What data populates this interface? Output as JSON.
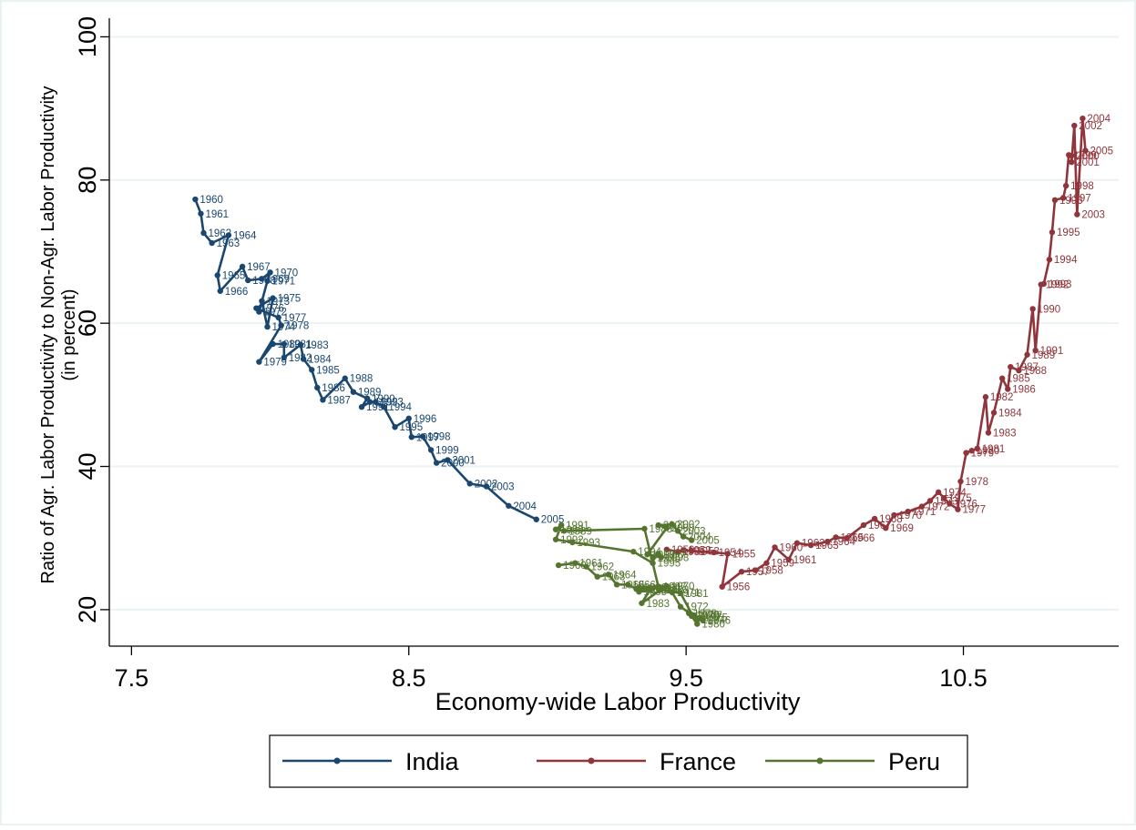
{
  "chart_data": {
    "type": "line",
    "title": "",
    "xlabel": "Economy-wide Labor Productivity",
    "ylabel": [
      "Ratio of Agr. Labor Productivity to Non-Agr. Labor Productivity",
      "(in percent)"
    ],
    "xlim": [
      7.42,
      11.06
    ],
    "ylim": [
      14.9,
      102.6
    ],
    "xticks": [
      7.5,
      8.5,
      9.5,
      10.5
    ],
    "xtick_labels": [
      "7.5",
      "8.5",
      "9.5",
      "10.5"
    ],
    "yticks": [
      20,
      40,
      60,
      80,
      100
    ],
    "ytick_labels": [
      "20",
      "40",
      "60",
      "80",
      "100"
    ],
    "grid": "horizontal",
    "legend_position": "bottom",
    "series": [
      {
        "name": "India",
        "color": "#1a476f",
        "points": [
          {
            "x": 7.73,
            "y": 77.3,
            "label": "1960"
          },
          {
            "x": 7.75,
            "y": 75.3,
            "label": "1961"
          },
          {
            "x": 7.76,
            "y": 72.6,
            "label": "1962"
          },
          {
            "x": 7.79,
            "y": 71.2,
            "label": "1963"
          },
          {
            "x": 7.85,
            "y": 72.3,
            "label": "1964"
          },
          {
            "x": 7.81,
            "y": 66.7,
            "label": "1965"
          },
          {
            "x": 7.82,
            "y": 64.5,
            "label": "1966"
          },
          {
            "x": 7.9,
            "y": 67.9,
            "label": "1967"
          },
          {
            "x": 7.92,
            "y": 66.0,
            "label": "1968"
          },
          {
            "x": 7.97,
            "y": 66.2,
            "label": "1969"
          },
          {
            "x": 8.0,
            "y": 67.1,
            "label": "1970"
          },
          {
            "x": 7.99,
            "y": 65.9,
            "label": "1971"
          },
          {
            "x": 7.96,
            "y": 61.6,
            "label": "1972"
          },
          {
            "x": 7.97,
            "y": 63.1,
            "label": "1973"
          },
          {
            "x": 7.99,
            "y": 59.5,
            "label": "1974"
          },
          {
            "x": 8.01,
            "y": 63.5,
            "label": "1975"
          },
          {
            "x": 7.95,
            "y": 62.1,
            "label": "1976"
          },
          {
            "x": 8.03,
            "y": 60.8,
            "label": "1977"
          },
          {
            "x": 8.04,
            "y": 59.7,
            "label": "1978"
          },
          {
            "x": 7.96,
            "y": 54.6,
            "label": "1979"
          },
          {
            "x": 8.01,
            "y": 57.1,
            "label": "1980"
          },
          {
            "x": 8.05,
            "y": 57.1,
            "label": "1981"
          },
          {
            "x": 8.05,
            "y": 55.2,
            "label": "1982"
          },
          {
            "x": 8.11,
            "y": 57.0,
            "label": "1983"
          },
          {
            "x": 8.12,
            "y": 55.0,
            "label": "1984"
          },
          {
            "x": 8.15,
            "y": 53.5,
            "label": "1985"
          },
          {
            "x": 8.17,
            "y": 51.0,
            "label": "1986"
          },
          {
            "x": 8.19,
            "y": 49.3,
            "label": "1987"
          },
          {
            "x": 8.27,
            "y": 52.3,
            "label": "1988"
          },
          {
            "x": 8.3,
            "y": 50.4,
            "label": "1989"
          },
          {
            "x": 8.35,
            "y": 49.5,
            "label": "1990"
          },
          {
            "x": 8.33,
            "y": 48.3,
            "label": "1991"
          },
          {
            "x": 8.36,
            "y": 49.0,
            "label": "1992"
          },
          {
            "x": 8.38,
            "y": 49.0,
            "label": "1993"
          },
          {
            "x": 8.41,
            "y": 48.3,
            "label": "1994"
          },
          {
            "x": 8.45,
            "y": 45.5,
            "label": "1995"
          },
          {
            "x": 8.5,
            "y": 46.7,
            "label": "1996"
          },
          {
            "x": 8.51,
            "y": 44.1,
            "label": "1997"
          },
          {
            "x": 8.55,
            "y": 44.2,
            "label": "1998"
          },
          {
            "x": 8.58,
            "y": 42.3,
            "label": "1999"
          },
          {
            "x": 8.6,
            "y": 40.5,
            "label": "2000"
          },
          {
            "x": 8.64,
            "y": 40.9,
            "label": "2001"
          },
          {
            "x": 8.72,
            "y": 37.6,
            "label": "2002"
          },
          {
            "x": 8.78,
            "y": 37.2,
            "label": "2003"
          },
          {
            "x": 8.86,
            "y": 34.5,
            "label": "2004"
          },
          {
            "x": 8.96,
            "y": 32.6,
            "label": "2005"
          }
        ]
      },
      {
        "name": "France",
        "color": "#90353b",
        "points": [
          {
            "x": 9.43,
            "y": 28.4,
            "label": "1950"
          },
          {
            "x": 9.47,
            "y": 28.1,
            "label": "1951"
          },
          {
            "x": 9.49,
            "y": 28.3,
            "label": "1952"
          },
          {
            "x": 9.52,
            "y": 28.2,
            "label": "1953"
          },
          {
            "x": 9.6,
            "y": 28.0,
            "label": "1954"
          },
          {
            "x": 9.65,
            "y": 27.8,
            "label": "1955"
          },
          {
            "x": 9.63,
            "y": 23.2,
            "label": "1956"
          },
          {
            "x": 9.7,
            "y": 25.3,
            "label": "1957"
          },
          {
            "x": 9.75,
            "y": 25.5,
            "label": "1958"
          },
          {
            "x": 9.79,
            "y": 26.5,
            "label": "1959"
          },
          {
            "x": 9.82,
            "y": 28.7,
            "label": "1960"
          },
          {
            "x": 9.87,
            "y": 27.0,
            "label": "1961"
          },
          {
            "x": 9.9,
            "y": 29.3,
            "label": "1962"
          },
          {
            "x": 9.95,
            "y": 29.0,
            "label": "1963"
          },
          {
            "x": 10.01,
            "y": 29.5,
            "label": "1964"
          },
          {
            "x": 10.04,
            "y": 30.1,
            "label": "1965"
          },
          {
            "x": 10.08,
            "y": 30.0,
            "label": "1966"
          },
          {
            "x": 10.14,
            "y": 31.8,
            "label": "1967"
          },
          {
            "x": 10.18,
            "y": 32.7,
            "label": "1968"
          },
          {
            "x": 10.22,
            "y": 31.4,
            "label": "1969"
          },
          {
            "x": 10.25,
            "y": 33.2,
            "label": "1970"
          },
          {
            "x": 10.3,
            "y": 33.7,
            "label": "1971"
          },
          {
            "x": 10.35,
            "y": 34.4,
            "label": "1972"
          },
          {
            "x": 10.38,
            "y": 35.2,
            "label": "1973"
          },
          {
            "x": 10.41,
            "y": 36.4,
            "label": "1974"
          },
          {
            "x": 10.43,
            "y": 35.6,
            "label": "1975"
          },
          {
            "x": 10.45,
            "y": 34.8,
            "label": "1976"
          },
          {
            "x": 10.48,
            "y": 34.0,
            "label": "1977"
          },
          {
            "x": 10.49,
            "y": 37.9,
            "label": "1978"
          },
          {
            "x": 10.51,
            "y": 41.9,
            "label": "1979"
          },
          {
            "x": 10.53,
            "y": 42.2,
            "label": "1980"
          },
          {
            "x": 10.55,
            "y": 42.5,
            "label": "1981"
          },
          {
            "x": 10.58,
            "y": 49.7,
            "label": "1982"
          },
          {
            "x": 10.59,
            "y": 44.7,
            "label": "1983"
          },
          {
            "x": 10.61,
            "y": 47.5,
            "label": "1984"
          },
          {
            "x": 10.64,
            "y": 52.3,
            "label": "1985"
          },
          {
            "x": 10.66,
            "y": 50.8,
            "label": "1986"
          },
          {
            "x": 10.67,
            "y": 53.9,
            "label": "1987"
          },
          {
            "x": 10.7,
            "y": 53.4,
            "label": "1988"
          },
          {
            "x": 10.73,
            "y": 55.6,
            "label": "1989"
          },
          {
            "x": 10.75,
            "y": 62.0,
            "label": "1990"
          },
          {
            "x": 10.76,
            "y": 56.2,
            "label": "1991"
          },
          {
            "x": 10.78,
            "y": 65.4,
            "label": "1992"
          },
          {
            "x": 10.79,
            "y": 65.5,
            "label": "1993"
          },
          {
            "x": 10.81,
            "y": 68.9,
            "label": "1994"
          },
          {
            "x": 10.82,
            "y": 72.7,
            "label": "1995"
          },
          {
            "x": 10.83,
            "y": 77.2,
            "label": "1996"
          },
          {
            "x": 10.86,
            "y": 77.5,
            "label": "1997"
          },
          {
            "x": 10.87,
            "y": 79.2,
            "label": "1998"
          },
          {
            "x": 10.88,
            "y": 83.5,
            "label": "1999"
          },
          {
            "x": 10.89,
            "y": 83.4,
            "label": "2000"
          },
          {
            "x": 10.89,
            "y": 82.5,
            "label": "2001"
          },
          {
            "x": 10.9,
            "y": 87.6,
            "label": "2002"
          },
          {
            "x": 10.91,
            "y": 75.2,
            "label": "2003"
          },
          {
            "x": 10.93,
            "y": 88.6,
            "label": "2004"
          },
          {
            "x": 10.94,
            "y": 84.1,
            "label": "2005"
          }
        ]
      },
      {
        "name": "Peru",
        "color": "#55752f",
        "points": [
          {
            "x": 9.04,
            "y": 26.2,
            "label": "1960"
          },
          {
            "x": 9.1,
            "y": 26.5,
            "label": "1961"
          },
          {
            "x": 9.14,
            "y": 26.0,
            "label": "1962"
          },
          {
            "x": 9.18,
            "y": 24.6,
            "label": "1963"
          },
          {
            "x": 9.22,
            "y": 24.9,
            "label": "1964"
          },
          {
            "x": 9.25,
            "y": 23.5,
            "label": "1965"
          },
          {
            "x": 9.29,
            "y": 23.5,
            "label": "1966"
          },
          {
            "x": 9.32,
            "y": 22.9,
            "label": "1967"
          },
          {
            "x": 9.35,
            "y": 22.8,
            "label": "1968"
          },
          {
            "x": 9.38,
            "y": 23.0,
            "label": "1969"
          },
          {
            "x": 9.43,
            "y": 23.3,
            "label": "1970"
          },
          {
            "x": 9.45,
            "y": 22.4,
            "label": "1971"
          },
          {
            "x": 9.48,
            "y": 20.4,
            "label": "1972"
          },
          {
            "x": 9.52,
            "y": 19.3,
            "label": "1973"
          },
          {
            "x": 9.54,
            "y": 18.6,
            "label": "1974"
          },
          {
            "x": 9.55,
            "y": 18.9,
            "label": "1975"
          },
          {
            "x": 9.56,
            "y": 18.5,
            "label": "1976"
          },
          {
            "x": 9.53,
            "y": 19.2,
            "label": "1977"
          },
          {
            "x": 9.51,
            "y": 19.5,
            "label": "1978"
          },
          {
            "x": 9.52,
            "y": 19.1,
            "label": "1979"
          },
          {
            "x": 9.54,
            "y": 18.0,
            "label": "1980"
          },
          {
            "x": 9.48,
            "y": 22.3,
            "label": "1981"
          },
          {
            "x": 9.41,
            "y": 22.8,
            "label": "1982"
          },
          {
            "x": 9.34,
            "y": 20.9,
            "label": "1983"
          },
          {
            "x": 9.37,
            "y": 22.8,
            "label": "1984"
          },
          {
            "x": 9.33,
            "y": 22.5,
            "label": "1985"
          },
          {
            "x": 9.33,
            "y": 23.1,
            "label": "1986"
          },
          {
            "x": 9.4,
            "y": 23.2,
            "label": "1987"
          },
          {
            "x": 9.35,
            "y": 31.3,
            "label": "1988"
          },
          {
            "x": 9.06,
            "y": 31.0,
            "label": "1989"
          },
          {
            "x": 9.03,
            "y": 31.2,
            "label": "1990"
          },
          {
            "x": 9.05,
            "y": 31.8,
            "label": "1991"
          },
          {
            "x": 9.03,
            "y": 29.8,
            "label": "1992"
          },
          {
            "x": 9.09,
            "y": 29.4,
            "label": "1993"
          },
          {
            "x": 9.31,
            "y": 28.1,
            "label": "1994"
          },
          {
            "x": 9.38,
            "y": 26.5,
            "label": "1995"
          },
          {
            "x": 9.38,
            "y": 27.2,
            "label": "1996"
          },
          {
            "x": 9.4,
            "y": 27.8,
            "label": "1997"
          },
          {
            "x": 9.41,
            "y": 27.3,
            "label": "1998"
          },
          {
            "x": 9.36,
            "y": 27.7,
            "label": "1999"
          },
          {
            "x": 9.43,
            "y": 31.4,
            "label": "2000"
          },
          {
            "x": 9.4,
            "y": 31.8,
            "label": "2001"
          },
          {
            "x": 9.45,
            "y": 31.9,
            "label": "2002"
          },
          {
            "x": 9.47,
            "y": 31.0,
            "label": "2003"
          },
          {
            "x": 9.49,
            "y": 30.2,
            "label": "2004"
          },
          {
            "x": 9.52,
            "y": 29.7,
            "label": "2005"
          }
        ]
      }
    ]
  }
}
